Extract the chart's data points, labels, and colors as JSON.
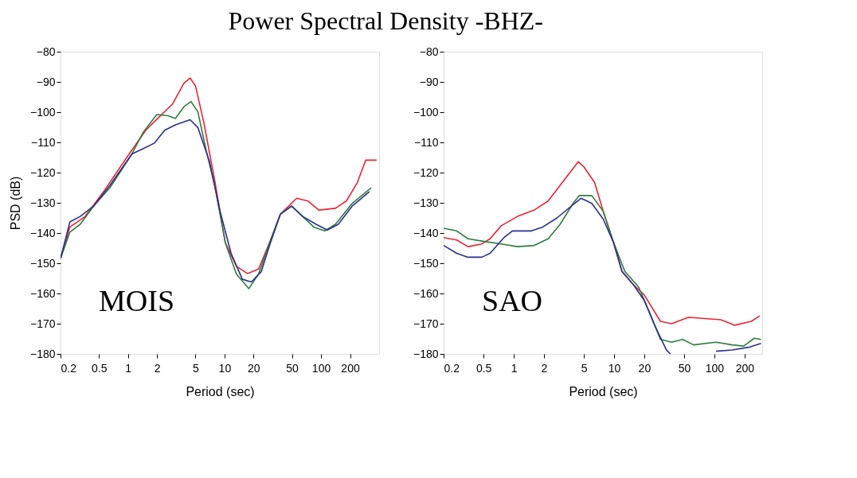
{
  "chart_data": [
    {
      "type": "line",
      "title": "Power Spectral Density -BHZ-",
      "xlabel": "Period (sec)",
      "ylabel": "PSD (dB)",
      "log": "x",
      "grid": false,
      "legend": false,
      "xlim": [
        0.2,
        400
      ],
      "xticks": [
        0.2,
        0.5,
        1,
        2,
        5,
        10,
        20,
        50,
        100,
        200
      ],
      "ylim": [
        -180,
        -80
      ],
      "yticks": [
        -180,
        -170,
        -160,
        -150,
        -140,
        -130,
        -120,
        -110,
        -100,
        -90,
        -80
      ],
      "annotations": [
        "MOIS"
      ],
      "series": [
        {
          "color": "#ee2233",
          "x": [
            0.2,
            0.25,
            0.3,
            0.36,
            0.57,
            1.03,
            1.53,
            2.1,
            2.9,
            3.8,
            4.4,
            5.0,
            6.1,
            7.9,
            10.2,
            13.3,
            17.3,
            22.5,
            29.3,
            38,
            56,
            73,
            95,
            141,
            183,
            238,
            290,
            376
          ],
          "values": [
            -148.4,
            -138,
            -136.3,
            -134.5,
            -125.9,
            -113.8,
            -106,
            -101.6,
            -97.3,
            -90.4,
            -88.7,
            -91.3,
            -103.4,
            -122.4,
            -143.2,
            -151,
            -153.4,
            -151.9,
            -143.2,
            -133.7,
            -128.5,
            -129.4,
            -132.4,
            -131.8,
            -129.4,
            -123.3,
            -115.9,
            -115.9
          ]
        },
        {
          "color": "#2e7d3e",
          "x": [
            0.2,
            0.25,
            0.32,
            0.44,
            0.65,
            1.1,
            1.43,
            1.99,
            2.6,
            3.1,
            3.8,
            4.5,
            5.3,
            6.4,
            7.9,
            10.2,
            13.3,
            17.9,
            22.5,
            29.3,
            38,
            49.6,
            64.6,
            84,
            109,
            141,
            210,
            274,
            332
          ],
          "values": [
            -148.4,
            -139.7,
            -137.1,
            -131.1,
            -125,
            -113.8,
            -106.8,
            -100.8,
            -101.2,
            -102.1,
            -98.2,
            -96.5,
            -99.9,
            -112.1,
            -124.2,
            -143.2,
            -153.6,
            -158.4,
            -153.6,
            -143.2,
            -133.7,
            -131.1,
            -134.5,
            -138,
            -139.3,
            -137.1,
            -130.2,
            -127.2,
            -125
          ]
        },
        {
          "color": "#2a2f8f",
          "x": [
            0.2,
            0.25,
            0.32,
            0.44,
            0.65,
            1.1,
            1.43,
            1.87,
            2.4,
            3.1,
            4.4,
            5.3,
            7.0,
            9.0,
            11.7,
            15.3,
            19.0,
            24.0,
            29.3,
            38,
            49.6,
            64.6,
            89,
            116,
            151,
            210,
            318
          ],
          "values": [
            -148.4,
            -136.3,
            -134.5,
            -131.1,
            -124.2,
            -113.8,
            -112.1,
            -110.3,
            -106,
            -104.2,
            -102.5,
            -105.1,
            -116.4,
            -132.8,
            -146.7,
            -155.3,
            -156.2,
            -152.8,
            -144.1,
            -133.7,
            -131.1,
            -134.5,
            -137.1,
            -139,
            -137.1,
            -131.1,
            -126.3
          ]
        }
      ]
    },
    {
      "type": "line",
      "xlabel": "Period (sec)",
      "log": "x",
      "grid": false,
      "legend": false,
      "xlim": [
        0.2,
        300
      ],
      "xticks": [
        0.2,
        0.5,
        1,
        2,
        5,
        10,
        20,
        50,
        100,
        200
      ],
      "ylim": [
        -180,
        -80
      ],
      "yticks": [
        -180,
        -170,
        -160,
        -150,
        -140,
        -130,
        -120,
        -110,
        -100,
        -90,
        -80
      ],
      "annotations": [
        "SAO"
      ],
      "series": [
        {
          "color": "#ee2233",
          "x": [
            0.2,
            0.27,
            0.35,
            0.48,
            0.58,
            0.75,
            1.09,
            1.6,
            2.2,
            2.9,
            4.4,
            5.0,
            6.4,
            7.8,
            9.9,
            12.0,
            15.6,
            20,
            29,
            37.5,
            55,
            80,
            116,
            160,
            234,
            283
          ],
          "values": [
            -141.5,
            -142.3,
            -144.5,
            -143.6,
            -141.9,
            -137.6,
            -134.5,
            -132.4,
            -129.4,
            -124.2,
            -116.4,
            -118.1,
            -123.3,
            -132.8,
            -143.2,
            -152.7,
            -157.1,
            -160.5,
            -169.2,
            -170,
            -167.9,
            -168.3,
            -168.7,
            -170.5,
            -169.2,
            -167.4
          ]
        },
        {
          "color": "#2e7d3e",
          "x": [
            0.2,
            0.27,
            0.35,
            0.51,
            0.75,
            1.09,
            1.6,
            2.2,
            2.9,
            3.9,
            4.5,
            6.0,
            7.8,
            9.9,
            12.8,
            17.6,
            22.8,
            29,
            37.5,
            48.5,
            62,
            104,
            151,
            196,
            250,
            292
          ],
          "values": [
            -138.4,
            -139.3,
            -141.9,
            -142.8,
            -143.6,
            -144.5,
            -144.1,
            -141.9,
            -137.1,
            -130.2,
            -127.6,
            -127.6,
            -132.8,
            -143.2,
            -152.7,
            -157.9,
            -166.6,
            -175.2,
            -176.1,
            -175.2,
            -177,
            -176.1,
            -177,
            -177.4,
            -174.8,
            -175.2
          ]
        },
        {
          "color": "#2a2f8f",
          "x": [
            0.2,
            0.27,
            0.35,
            0.48,
            0.58,
            0.8,
            0.97,
            1.5,
            1.95,
            2.7,
            3.9,
            4.7,
            6.0,
            7.8,
            9.9,
            12.0,
            15.6,
            20,
            25.7,
            33.3,
            36.5,
            60,
            104,
            151,
            220,
            292
          ],
          "values": [
            -144.1,
            -146.7,
            -148,
            -148,
            -146.7,
            -141.5,
            -139.3,
            -139.3,
            -138,
            -135,
            -130.6,
            -128.5,
            -130.2,
            -135.4,
            -143.2,
            -152.7,
            -157.1,
            -162.3,
            -170.9,
            -178.7,
            -180,
            null,
            -179.1,
            -178.7,
            -177.8,
            -176.5
          ]
        }
      ]
    }
  ]
}
